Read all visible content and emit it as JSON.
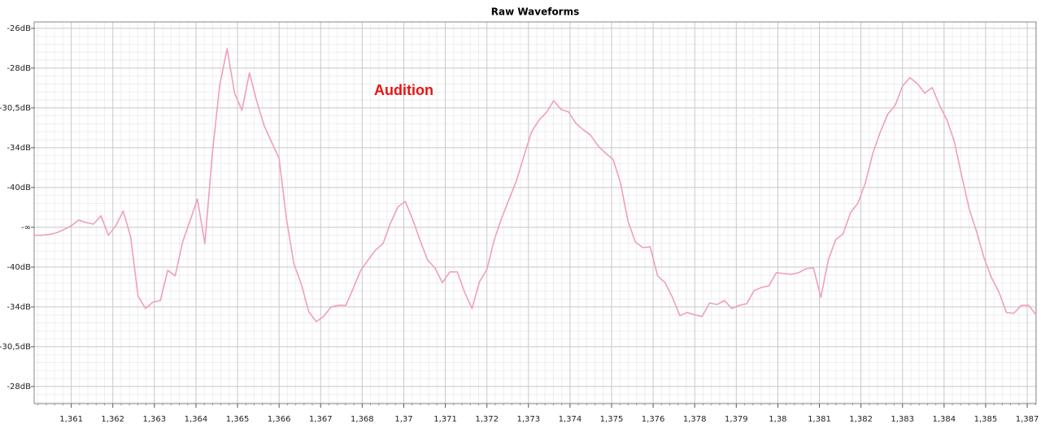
{
  "chart_data": {
    "type": "line",
    "title": "Raw Waveforms",
    "annotation": "Audition",
    "color": "#f0a0b6",
    "grid": true,
    "xlim": [
      1.3598,
      1.3868
    ],
    "ylim": [
      -4.43,
      5.16
    ],
    "xticks": [
      {
        "value": 1.3608,
        "label": "1,361"
      },
      {
        "value": 1.36192,
        "label": "1,362"
      },
      {
        "value": 1.36304,
        "label": "1,363"
      },
      {
        "value": 1.36416,
        "label": "1,364"
      },
      {
        "value": 1.36528,
        "label": "1,365"
      },
      {
        "value": 1.3664,
        "label": "1,366"
      },
      {
        "value": 1.36752,
        "label": "1,367"
      },
      {
        "value": 1.36864,
        "label": "1,368"
      },
      {
        "value": 1.36976,
        "label": "1,37"
      },
      {
        "value": 1.37088,
        "label": "1,371"
      },
      {
        "value": 1.372,
        "label": "1,372"
      },
      {
        "value": 1.37312,
        "label": "1,373"
      },
      {
        "value": 1.37424,
        "label": "1,374"
      },
      {
        "value": 1.37536,
        "label": "1,375"
      },
      {
        "value": 1.37648,
        "label": "1,376"
      },
      {
        "value": 1.3776,
        "label": "1,378"
      },
      {
        "value": 1.37872,
        "label": "1,379"
      },
      {
        "value": 1.37984,
        "label": "1,38"
      },
      {
        "value": 1.38096,
        "label": "1,381"
      },
      {
        "value": 1.38208,
        "label": "1,382"
      },
      {
        "value": 1.3832,
        "label": "1,383"
      },
      {
        "value": 1.38432,
        "label": "1,384"
      },
      {
        "value": 1.38544,
        "label": "1,385"
      },
      {
        "value": 1.38656,
        "label": "1,387"
      }
    ],
    "yticks": [
      {
        "value": 5,
        "label": "-26dB"
      },
      {
        "value": 4,
        "label": "-28dB"
      },
      {
        "value": 3,
        "label": "-30,5dB"
      },
      {
        "value": 2,
        "label": "-34dB"
      },
      {
        "value": 1,
        "label": "-40dB"
      },
      {
        "value": 0,
        "label": "-∞"
      },
      {
        "value": -1,
        "label": "-40dB"
      },
      {
        "value": -2,
        "label": "-34dB"
      },
      {
        "value": -3,
        "label": "-30,5dB"
      },
      {
        "value": -4,
        "label": "-28dB"
      }
    ],
    "x": [
      1.3598,
      1.36,
      1.3602,
      1.3604,
      1.3606,
      1.3608,
      1.361,
      1.3612,
      1.3614,
      1.3616,
      1.3618,
      1.362,
      1.3622,
      1.3624,
      1.3626,
      1.3628,
      1.363,
      1.3632,
      1.3634,
      1.3636,
      1.3638,
      1.364,
      1.3642,
      1.3644,
      1.3646,
      1.3648,
      1.365,
      1.3652,
      1.3654,
      1.3656,
      1.3658,
      1.366,
      1.3662,
      1.3664,
      1.3666,
      1.3668,
      1.367,
      1.3672,
      1.3674,
      1.3676,
      1.3678,
      1.368,
      1.3682,
      1.3684,
      1.3686,
      1.3688,
      1.369,
      1.3692,
      1.3694,
      1.3696,
      1.3698,
      1.37,
      1.3702,
      1.3704,
      1.3706,
      1.3708,
      1.371,
      1.3712,
      1.3714,
      1.3716,
      1.3718,
      1.372,
      1.3722,
      1.3724,
      1.3726,
      1.3728,
      1.373,
      1.3732,
      1.3734,
      1.3736,
      1.3738,
      1.374,
      1.3742,
      1.3744,
      1.3746,
      1.3748,
      1.375,
      1.3752,
      1.3754,
      1.3756,
      1.3758,
      1.376,
      1.3762,
      1.3764,
      1.3766,
      1.3768,
      1.377,
      1.3772,
      1.3774,
      1.3776,
      1.3778,
      1.378,
      1.3782,
      1.3784,
      1.3786,
      1.3788,
      1.379,
      1.3792,
      1.3794,
      1.3796,
      1.3798,
      1.38,
      1.3802,
      1.3804,
      1.3806,
      1.3808,
      1.381,
      1.3812,
      1.3814,
      1.3816,
      1.3818,
      1.382,
      1.3822,
      1.3824,
      1.3826,
      1.3828,
      1.383,
      1.3832,
      1.3834,
      1.3836,
      1.3838,
      1.384,
      1.3842,
      1.3844,
      1.3846,
      1.3848,
      1.385,
      1.3852,
      1.3854,
      1.3856,
      1.3858,
      1.386,
      1.3862,
      1.3864,
      1.3866,
      1.3868
    ],
    "values": [
      -0.2,
      -0.2,
      -0.18,
      -0.14,
      -0.06,
      0.04,
      0.18,
      0.12,
      0.08,
      0.29,
      -0.2,
      0.04,
      0.41,
      -0.24,
      -1.73,
      -2.04,
      -1.88,
      -1.84,
      -1.08,
      -1.22,
      -0.37,
      0.16,
      0.71,
      -0.41,
      1.84,
      3.57,
      4.49,
      3.37,
      2.94,
      3.88,
      3.16,
      2.55,
      2.14,
      1.73,
      0.2,
      -0.92,
      -1.43,
      -2.12,
      -2.37,
      -2.24,
      -2.0,
      -1.96,
      -1.96,
      -1.53,
      -1.08,
      -0.82,
      -0.57,
      -0.41,
      0.1,
      0.51,
      0.65,
      0.2,
      -0.33,
      -0.82,
      -1.02,
      -1.39,
      -1.12,
      -1.12,
      -1.63,
      -2.04,
      -1.37,
      -1.06,
      -0.31,
      0.24,
      0.71,
      1.18,
      1.8,
      2.39,
      2.69,
      2.88,
      3.18,
      2.96,
      2.9,
      2.61,
      2.45,
      2.31,
      2.04,
      1.86,
      1.71,
      1.12,
      0.16,
      -0.37,
      -0.51,
      -0.49,
      -1.22,
      -1.39,
      -1.76,
      -2.22,
      -2.14,
      -2.2,
      -2.24,
      -1.9,
      -1.94,
      -1.84,
      -2.04,
      -1.96,
      -1.92,
      -1.59,
      -1.51,
      -1.47,
      -1.14,
      -1.16,
      -1.18,
      -1.14,
      -1.04,
      -1.02,
      -1.76,
      -0.82,
      -0.31,
      -0.16,
      0.37,
      0.61,
      1.12,
      1.86,
      2.39,
      2.84,
      3.06,
      3.55,
      3.76,
      3.61,
      3.37,
      3.51,
      3.06,
      2.69,
      2.14,
      1.27,
      0.45,
      -0.12,
      -0.78,
      -1.27,
      -1.63,
      -2.14,
      -2.16,
      -1.96,
      -1.96,
      -2.2
    ]
  }
}
